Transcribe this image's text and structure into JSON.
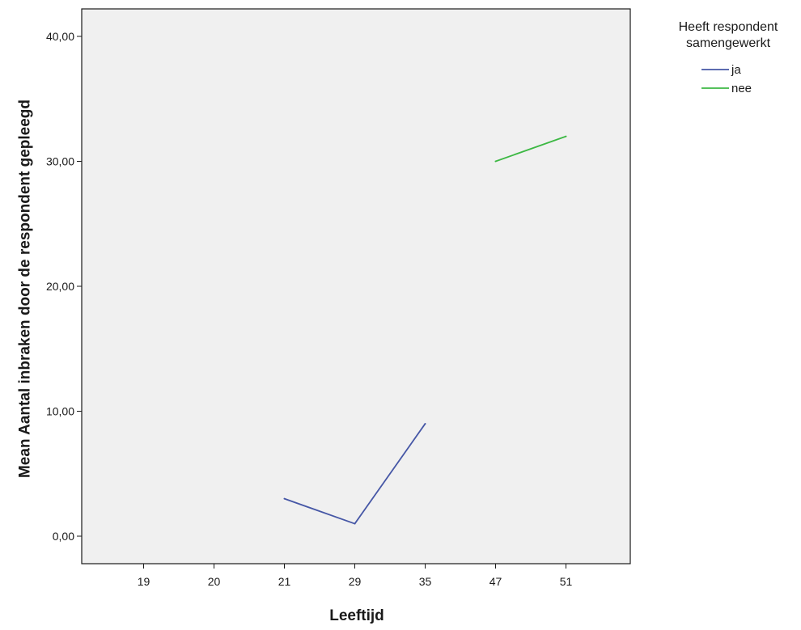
{
  "chart_data": {
    "type": "line",
    "xlabel": "Leeftijd",
    "ylabel": "Mean Aantal inbraken door de respondent gepleegd",
    "categories": [
      "19",
      "20",
      "21",
      "29",
      "35",
      "47",
      "51"
    ],
    "yticks": [
      "0,00",
      "10,00",
      "20,00",
      "30,00",
      "40,00"
    ],
    "ylim": [
      -2.2,
      42.2
    ],
    "grid": false,
    "legend": {
      "title_lines": [
        "Heeft respondent",
        "samengewerkt"
      ],
      "placement": "right"
    },
    "series": [
      {
        "name": "ja",
        "color": "#4657a6",
        "points": [
          {
            "x": "21",
            "y": 3
          },
          {
            "x": "29",
            "y": 1
          },
          {
            "x": "35",
            "y": 9
          }
        ]
      },
      {
        "name": "nee",
        "color": "#3db844",
        "points": [
          {
            "x": "47",
            "y": 30
          },
          {
            "x": "51",
            "y": 32
          }
        ]
      }
    ],
    "plot_background": "#f0f0f0",
    "axis_color": "#1a1a1a"
  }
}
